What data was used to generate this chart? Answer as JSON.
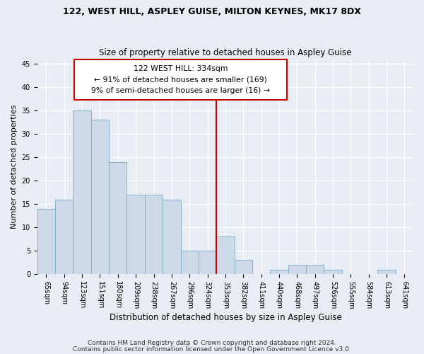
{
  "title1": "122, WEST HILL, ASPLEY GUISE, MILTON KEYNES, MK17 8DX",
  "title2": "Size of property relative to detached houses in Aspley Guise",
  "xlabel": "Distribution of detached houses by size in Aspley Guise",
  "ylabel": "Number of detached properties",
  "categories": [
    "65sqm",
    "94sqm",
    "123sqm",
    "151sqm",
    "180sqm",
    "209sqm",
    "238sqm",
    "267sqm",
    "296sqm",
    "324sqm",
    "353sqm",
    "382sqm",
    "411sqm",
    "440sqm",
    "468sqm",
    "497sqm",
    "526sqm",
    "555sqm",
    "584sqm",
    "613sqm",
    "641sqm"
  ],
  "values": [
    14,
    16,
    35,
    33,
    24,
    17,
    17,
    16,
    5,
    5,
    8,
    3,
    0,
    1,
    2,
    2,
    1,
    0,
    0,
    1,
    0
  ],
  "bar_color": "#ccd9e8",
  "bar_edge_color": "#8aafc8",
  "vline_color": "#cc0000",
  "annotation_text": "122 WEST HILL: 334sqm\n← 91% of detached houses are smaller (169)\n9% of semi-detached houses are larger (16) →",
  "ylim": [
    0,
    46
  ],
  "yticks": [
    0,
    5,
    10,
    15,
    20,
    25,
    30,
    35,
    40,
    45
  ],
  "footnote1": "Contains HM Land Registry data © Crown copyright and database right 2024.",
  "footnote2": "Contains public sector information licensed under the Open Government Licence v3.0.",
  "bg_color": "#e8edf4",
  "grid_color": "#ffffff"
}
